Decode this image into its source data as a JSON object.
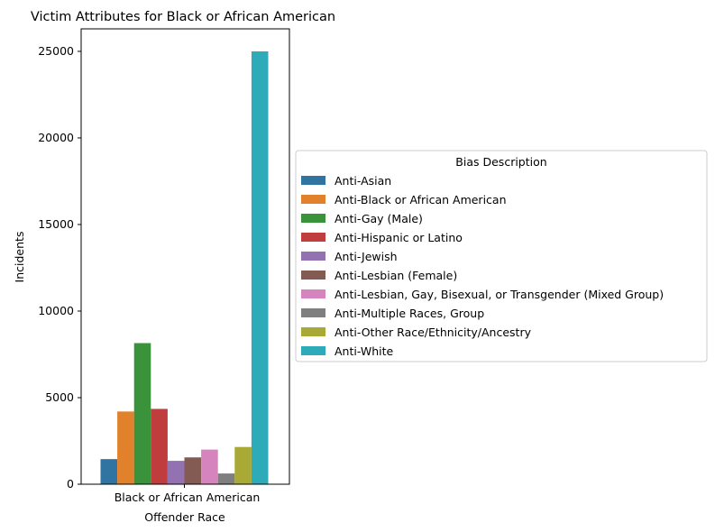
{
  "chart_data": {
    "type": "bar",
    "title": "Victim Attributes for Black or African American",
    "xlabel": "Offender Race",
    "ylabel": "Incidents",
    "categories": [
      "Black or African American"
    ],
    "ylim": [
      0,
      26300
    ],
    "yticks": [
      0,
      5000,
      10000,
      15000,
      20000,
      25000
    ],
    "grid": false,
    "legend": {
      "title": "Bias Description",
      "placement": "center-left-outside"
    },
    "series": [
      {
        "name": "Anti-Asian",
        "values": [
          1450
        ],
        "color": "#3274a1"
      },
      {
        "name": "Anti-Black or African American",
        "values": [
          4200
        ],
        "color": "#e1812c"
      },
      {
        "name": "Anti-Gay (Male)",
        "values": [
          8150
        ],
        "color": "#3a923a"
      },
      {
        "name": "Anti-Hispanic or Latino",
        "values": [
          4350
        ],
        "color": "#c03d3e"
      },
      {
        "name": "Anti-Jewish",
        "values": [
          1350
        ],
        "color": "#9372b2"
      },
      {
        "name": "Anti-Lesbian (Female)",
        "values": [
          1550
        ],
        "color": "#845b53"
      },
      {
        "name": "Anti-Lesbian, Gay, Bisexual, or Transgender (Mixed Group)",
        "values": [
          2000
        ],
        "color": "#d684bd"
      },
      {
        "name": "Anti-Multiple Races, Group",
        "values": [
          620
        ],
        "color": "#7f7f7f"
      },
      {
        "name": "Anti-Other Race/Ethnicity/Ancestry",
        "values": [
          2150
        ],
        "color": "#a9aa35"
      },
      {
        "name": "Anti-White",
        "values": [
          25000
        ],
        "color": "#2eabb8"
      }
    ]
  }
}
